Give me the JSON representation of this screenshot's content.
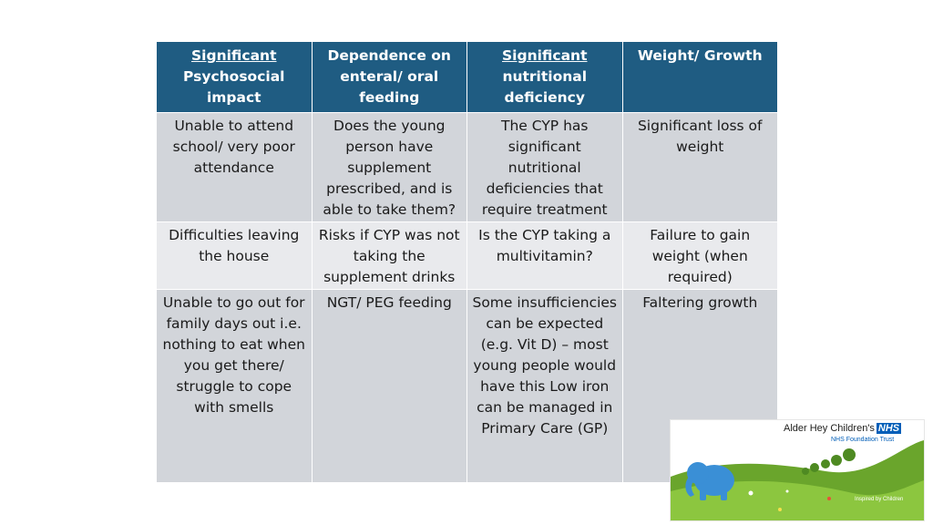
{
  "table": {
    "headers": [
      {
        "underlined": "Significant",
        "rest": "Psychosocial impact"
      },
      {
        "underlined": "",
        "rest": "Dependence on enteral/ oral feeding"
      },
      {
        "underlined": "Significant",
        "rest": "nutritional deficiency"
      },
      {
        "underlined": "",
        "rest": "Weight/ Growth"
      }
    ],
    "rows": [
      [
        "Unable to attend school/ very poor attendance",
        "Does the young person have supplement prescribed, and is able to take them?",
        "The CYP has significant nutritional deficiencies that require treatment",
        "Significant loss of weight"
      ],
      [
        "Difficulties leaving the house",
        "Risks if CYP was not taking the supplement drinks",
        "Is the CYP taking a multivitamin?",
        "Failure to gain weight (when required)"
      ],
      [
        "Unable to go out for family days out i.e. nothing to eat when you get there/ struggle to cope with smells",
        "NGT/ PEG feeding",
        "Some insufficiencies can be expected (e.g. Vit D) – most young people would have this Low iron can be managed in Primary Care (GP)",
        "Faltering growth"
      ]
    ]
  },
  "logo": {
    "org_name": "Alder Hey Children's",
    "nhs_mark": "NHS",
    "trust": "NHS Foundation Trust",
    "tagline": "Inspired by Children",
    "colors": {
      "green": "#8cc63f",
      "dark_green": "#6aa52c",
      "blue": "#3a8fd6",
      "nhs_blue": "#005eb8"
    }
  },
  "colors": {
    "header_bg": "#1f5c82",
    "row_dark": "#d2d5da",
    "row_light": "#e9eaed"
  }
}
